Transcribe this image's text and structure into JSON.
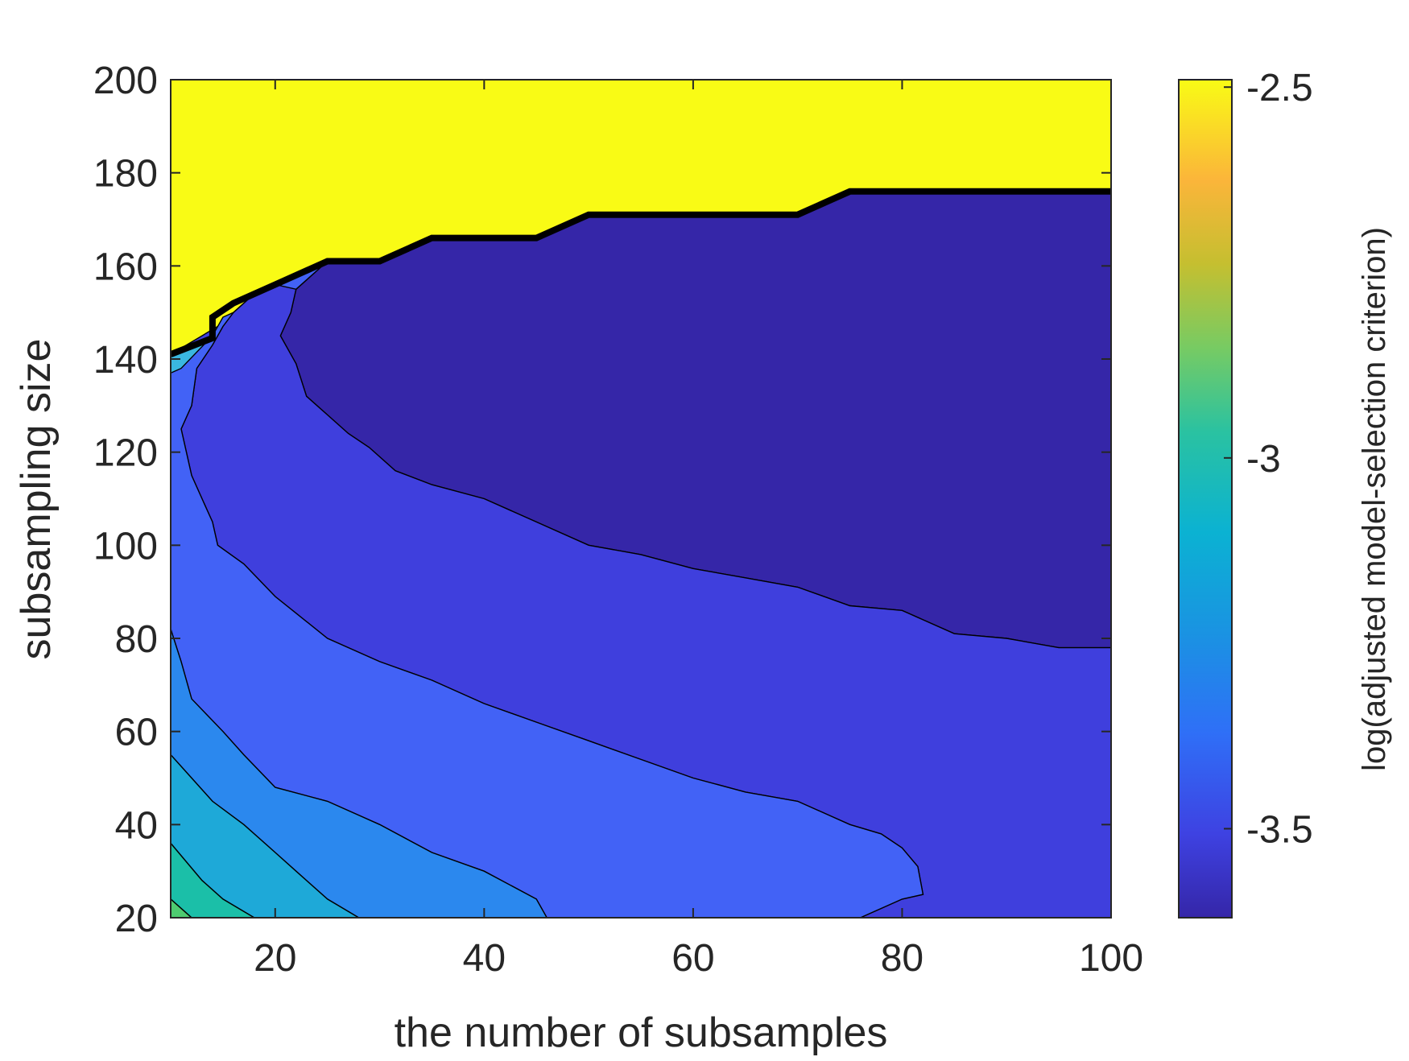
{
  "chart_data": {
    "type": "contour",
    "xlabel": "the number of subsamples",
    "ylabel": "subsampling size",
    "xlim": [
      10,
      100
    ],
    "ylim": [
      20,
      200
    ],
    "xticks": [
      "20",
      "40",
      "60",
      "80",
      "100"
    ],
    "xtick_values": [
      20,
      40,
      60,
      80,
      100
    ],
    "yticks": [
      "20",
      "40",
      "60",
      "80",
      "100",
      "120",
      "140",
      "160",
      "180",
      "200"
    ],
    "ytick_values": [
      20,
      40,
      60,
      80,
      100,
      120,
      140,
      160,
      180,
      200
    ],
    "colorbar": {
      "label": "log(adjusted model-selection criterion)",
      "range": [
        -3.62,
        -2.49
      ],
      "ticks": [
        "-2.5",
        "-3",
        "-3.5"
      ],
      "tick_values": [
        -2.5,
        -3.0,
        -3.5
      ],
      "colormap": "parula"
    },
    "regions": [
      {
        "level": -2.5,
        "color": "#f9fb15",
        "points": [
          [
            10,
            200
          ],
          [
            100,
            200
          ],
          [
            100,
            176
          ],
          [
            75,
            176
          ],
          [
            70,
            171
          ],
          [
            50,
            171
          ],
          [
            45,
            166
          ],
          [
            35,
            166
          ],
          [
            30,
            161
          ],
          [
            25,
            161
          ],
          [
            10,
            141
          ]
        ]
      },
      {
        "level": -3.58,
        "color": "#3526a8",
        "points": [
          [
            100,
            176
          ],
          [
            75,
            176
          ],
          [
            70,
            171
          ],
          [
            50,
            171
          ],
          [
            45,
            166
          ],
          [
            35,
            166
          ],
          [
            30,
            161
          ],
          [
            25,
            161
          ],
          [
            24,
            159
          ],
          [
            22,
            155
          ],
          [
            21.5,
            150
          ],
          [
            20.5,
            145
          ],
          [
            22,
            139
          ],
          [
            23,
            132
          ],
          [
            25,
            128
          ],
          [
            27,
            124
          ],
          [
            29,
            121
          ],
          [
            31.5,
            116
          ],
          [
            35,
            113
          ],
          [
            40,
            110
          ],
          [
            45,
            105
          ],
          [
            50,
            100
          ],
          [
            55,
            98
          ],
          [
            60,
            95
          ],
          [
            65,
            93
          ],
          [
            70,
            91
          ],
          [
            75,
            87
          ],
          [
            80,
            86
          ],
          [
            85,
            81
          ],
          [
            90,
            80
          ],
          [
            95,
            78
          ],
          [
            100,
            78
          ]
        ]
      },
      {
        "level": -3.51,
        "color": "#3f3fdd",
        "points": [
          [
            25,
            161
          ],
          [
            24,
            159
          ],
          [
            22,
            155
          ],
          [
            21.5,
            150
          ],
          [
            20.5,
            145
          ],
          [
            22,
            139
          ],
          [
            23,
            132
          ],
          [
            25,
            128
          ],
          [
            27,
            124
          ],
          [
            29,
            121
          ],
          [
            31.5,
            116
          ],
          [
            35,
            113
          ],
          [
            40,
            110
          ],
          [
            45,
            105
          ],
          [
            50,
            100
          ],
          [
            55,
            98
          ],
          [
            60,
            95
          ],
          [
            65,
            93
          ],
          [
            70,
            91
          ],
          [
            75,
            87
          ],
          [
            80,
            86
          ],
          [
            85,
            81
          ],
          [
            90,
            80
          ],
          [
            95,
            78
          ],
          [
            100,
            78
          ],
          [
            100,
            20
          ],
          [
            76,
            20
          ],
          [
            80,
            24
          ],
          [
            82,
            25
          ],
          [
            81.5,
            31
          ],
          [
            80,
            35
          ],
          [
            78,
            38
          ],
          [
            75,
            40
          ],
          [
            70,
            45
          ],
          [
            65,
            47
          ],
          [
            60,
            50
          ],
          [
            55,
            54
          ],
          [
            50,
            58
          ],
          [
            45,
            62
          ],
          [
            40,
            66
          ],
          [
            35,
            71
          ],
          [
            30,
            75
          ],
          [
            25,
            80
          ],
          [
            20,
            89
          ],
          [
            17,
            96
          ],
          [
            14.5,
            100
          ],
          [
            14,
            105
          ],
          [
            13,
            110
          ],
          [
            12,
            115
          ],
          [
            11,
            125
          ],
          [
            12,
            130
          ],
          [
            12.5,
            138
          ],
          [
            14,
            143
          ],
          [
            15,
            147
          ],
          [
            16,
            150
          ],
          [
            18,
            154
          ],
          [
            20,
            156
          ]
        ]
      },
      {
        "level": -3.42,
        "color": "#4262f6",
        "points": [
          [
            10,
            141
          ],
          [
            14,
            145
          ],
          [
            15,
            149
          ],
          [
            16,
            150
          ],
          [
            18,
            154
          ],
          [
            20,
            156
          ],
          [
            25,
            161
          ],
          [
            24,
            159
          ],
          [
            22,
            155
          ],
          [
            20,
            156
          ],
          [
            18,
            154
          ],
          [
            16,
            150
          ],
          [
            15,
            147
          ],
          [
            14,
            143
          ],
          [
            12.5,
            138
          ],
          [
            12,
            130
          ],
          [
            11,
            125
          ],
          [
            12,
            115
          ],
          [
            13,
            110
          ],
          [
            14,
            105
          ],
          [
            14.5,
            100
          ],
          [
            17,
            96
          ],
          [
            20,
            89
          ],
          [
            25,
            80
          ],
          [
            30,
            75
          ],
          [
            35,
            71
          ],
          [
            40,
            66
          ],
          [
            45,
            62
          ],
          [
            50,
            58
          ],
          [
            55,
            54
          ],
          [
            60,
            50
          ],
          [
            65,
            47
          ],
          [
            70,
            45
          ],
          [
            75,
            40
          ],
          [
            78,
            38
          ],
          [
            80,
            35
          ],
          [
            81.5,
            31
          ],
          [
            82,
            25
          ],
          [
            80,
            24
          ],
          [
            76,
            20
          ],
          [
            46,
            20
          ],
          [
            45,
            24
          ],
          [
            40,
            30
          ],
          [
            35,
            34
          ],
          [
            30,
            40
          ],
          [
            25,
            45
          ],
          [
            20,
            48
          ],
          [
            17,
            55
          ],
          [
            15,
            60
          ],
          [
            12,
            67
          ],
          [
            11,
            75
          ],
          [
            10,
            82
          ]
        ]
      },
      {
        "level": -3.3,
        "color": "#2b88ee",
        "points": [
          [
            10,
            82
          ],
          [
            11,
            75
          ],
          [
            12,
            67
          ],
          [
            15,
            60
          ],
          [
            17,
            55
          ],
          [
            20,
            48
          ],
          [
            25,
            45
          ],
          [
            30,
            40
          ],
          [
            35,
            34
          ],
          [
            40,
            30
          ],
          [
            45,
            24
          ],
          [
            46,
            20
          ],
          [
            28,
            20
          ],
          [
            25,
            24
          ],
          [
            22,
            30
          ],
          [
            20,
            34
          ],
          [
            17,
            40
          ],
          [
            14,
            45
          ],
          [
            12,
            50
          ],
          [
            10,
            55
          ]
        ]
      },
      {
        "level": -3.15,
        "color": "#1ea9d8",
        "points": [
          [
            10,
            55
          ],
          [
            12,
            50
          ],
          [
            14,
            45
          ],
          [
            17,
            40
          ],
          [
            20,
            34
          ],
          [
            22,
            30
          ],
          [
            25,
            24
          ],
          [
            28,
            20
          ],
          [
            18,
            20
          ],
          [
            15,
            24
          ],
          [
            13,
            28
          ],
          [
            10,
            36
          ]
        ]
      },
      {
        "level": -3.0,
        "color": "#1bbfa8",
        "points": [
          [
            10,
            36
          ],
          [
            13,
            28
          ],
          [
            15,
            24
          ],
          [
            18,
            20
          ],
          [
            12,
            20
          ],
          [
            10,
            24
          ]
        ]
      },
      {
        "level": -2.9,
        "color": "#4ecb70",
        "points": [
          [
            10,
            24
          ],
          [
            12,
            20
          ],
          [
            10,
            20
          ]
        ]
      },
      {
        "level": -2.5,
        "color": "#3ab7e0",
        "points": [
          [
            10,
            141
          ],
          [
            14,
            145
          ],
          [
            11,
            138
          ],
          [
            10,
            137
          ]
        ]
      }
    ],
    "boundary_line": {
      "color": "#000000",
      "points": [
        [
          10,
          141
        ],
        [
          14,
          144.5
        ],
        [
          14,
          149
        ],
        [
          16,
          152
        ],
        [
          20,
          156
        ],
        [
          25,
          161
        ],
        [
          30,
          161
        ],
        [
          35,
          166
        ],
        [
          45,
          166
        ],
        [
          50,
          171
        ],
        [
          70,
          171
        ],
        [
          75,
          176
        ],
        [
          100,
          176
        ]
      ]
    }
  }
}
